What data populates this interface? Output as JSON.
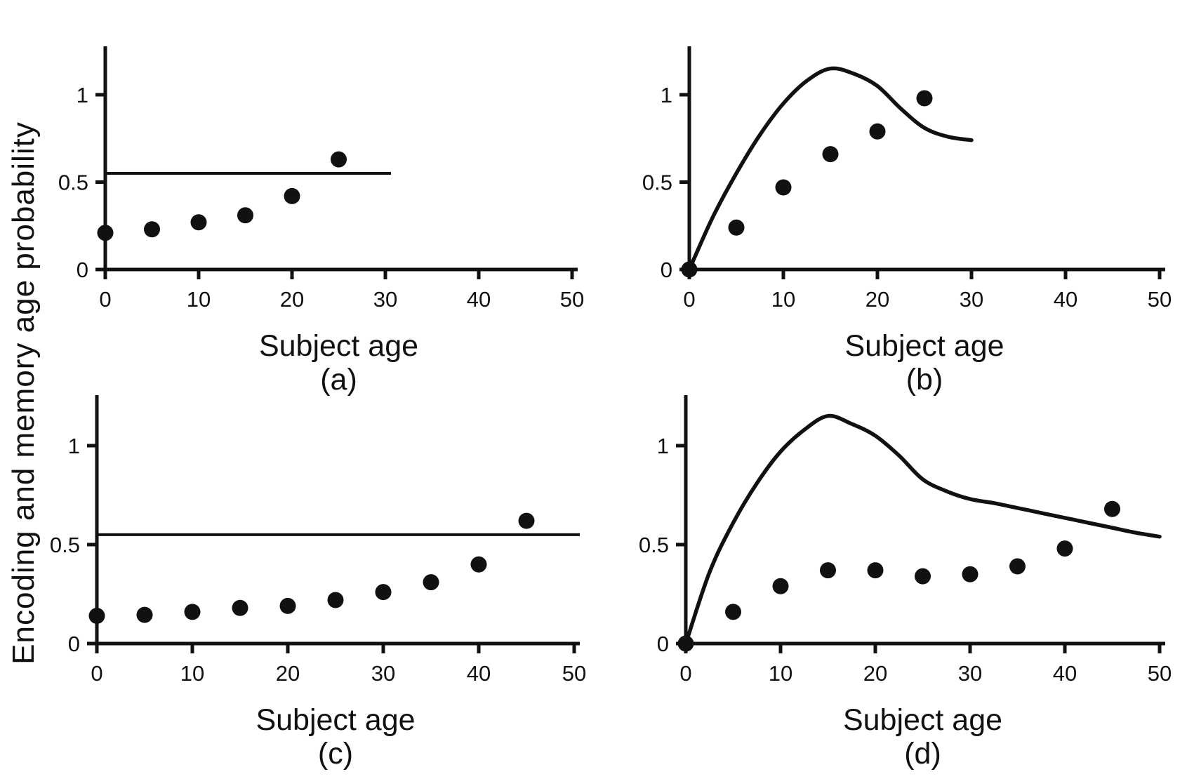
{
  "figure": {
    "y_axis_shared_label": "Encoding and memory age probability",
    "background": "#ffffff",
    "ink": "#111111"
  },
  "chart_data": [
    {
      "panel": "a",
      "type": "scatter",
      "panel_label": "(a)",
      "xlabel": "Subject age",
      "xlim": [
        0,
        50
      ],
      "ylim": [
        0,
        1.28
      ],
      "x_ticks": [
        0,
        10,
        20,
        30,
        40,
        50
      ],
      "y_ticks": [
        0,
        0.5,
        1
      ],
      "grid": false,
      "legend": null,
      "marker": "filled-circle",
      "points": [
        [
          0,
          0.21
        ],
        [
          5,
          0.23
        ],
        [
          10,
          0.27
        ],
        [
          15,
          0.31
        ],
        [
          20,
          0.42
        ],
        [
          25,
          0.63
        ]
      ],
      "hline": {
        "y": 0.55,
        "x_start": 0,
        "x_end": 30
      },
      "curve": null
    },
    {
      "panel": "b",
      "type": "scatter",
      "panel_label": "(b)",
      "xlabel": "Subject age",
      "xlim": [
        0,
        50
      ],
      "ylim": [
        0,
        1.28
      ],
      "x_ticks": [
        0,
        10,
        20,
        30,
        40,
        50
      ],
      "y_ticks": [
        0,
        0.5,
        1
      ],
      "grid": false,
      "legend": null,
      "marker": "filled-circle",
      "points": [
        [
          0,
          0
        ],
        [
          5,
          0.24
        ],
        [
          10,
          0.47
        ],
        [
          15,
          0.66
        ],
        [
          20,
          0.79
        ],
        [
          25,
          0.98
        ]
      ],
      "hline": null,
      "curve": [
        [
          0,
          0
        ],
        [
          2.5,
          0.3
        ],
        [
          5,
          0.55
        ],
        [
          7.5,
          0.77
        ],
        [
          10,
          0.95
        ],
        [
          12.5,
          1.08
        ],
        [
          15,
          1.15
        ],
        [
          17.5,
          1.12
        ],
        [
          20,
          1.05
        ],
        [
          22.5,
          0.92
        ],
        [
          25,
          0.81
        ],
        [
          27.5,
          0.76
        ],
        [
          30,
          0.74
        ]
      ]
    },
    {
      "panel": "c",
      "type": "scatter",
      "panel_label": "(c)",
      "xlabel": "Subject age",
      "xlim": [
        0,
        50
      ],
      "ylim": [
        0,
        1.25
      ],
      "x_ticks": [
        0,
        10,
        20,
        30,
        40,
        50
      ],
      "y_ticks": [
        0,
        0.5,
        1
      ],
      "grid": false,
      "legend": null,
      "marker": "filled-circle",
      "points": [
        [
          0,
          0.14
        ],
        [
          5,
          0.145
        ],
        [
          10,
          0.16
        ],
        [
          15,
          0.18
        ],
        [
          20,
          0.19
        ],
        [
          25,
          0.22
        ],
        [
          30,
          0.26
        ],
        [
          35,
          0.31
        ],
        [
          40,
          0.4
        ],
        [
          45,
          0.62
        ]
      ],
      "hline": {
        "y": 0.55,
        "x_start": 0,
        "x_end": 50
      },
      "curve": null
    },
    {
      "panel": "d",
      "type": "scatter",
      "panel_label": "(d)",
      "xlabel": "Subject age",
      "xlim": [
        0,
        50
      ],
      "ylim": [
        0,
        1.25
      ],
      "x_ticks": [
        0,
        10,
        20,
        30,
        40,
        50
      ],
      "y_ticks": [
        0,
        0.5,
        1
      ],
      "grid": false,
      "legend": null,
      "marker": "filled-circle",
      "points": [
        [
          0,
          0
        ],
        [
          5,
          0.16
        ],
        [
          10,
          0.29
        ],
        [
          15,
          0.37
        ],
        [
          20,
          0.37
        ],
        [
          25,
          0.34
        ],
        [
          30,
          0.35
        ],
        [
          35,
          0.39
        ],
        [
          40,
          0.48
        ],
        [
          45,
          0.68
        ]
      ],
      "hline": null,
      "curve": [
        [
          0,
          0
        ],
        [
          2.5,
          0.36
        ],
        [
          5,
          0.61
        ],
        [
          7.5,
          0.81
        ],
        [
          10,
          0.97
        ],
        [
          12.5,
          1.08
        ],
        [
          15,
          1.15
        ],
        [
          17.5,
          1.11
        ],
        [
          20,
          1.05
        ],
        [
          22.5,
          0.95
        ],
        [
          25,
          0.83
        ],
        [
          27.5,
          0.77
        ],
        [
          30,
          0.73
        ],
        [
          32.5,
          0.71
        ],
        [
          35,
          0.685
        ],
        [
          37.5,
          0.66
        ],
        [
          40,
          0.635
        ],
        [
          42.5,
          0.61
        ],
        [
          45,
          0.585
        ],
        [
          47.5,
          0.56
        ],
        [
          50,
          0.54
        ]
      ]
    }
  ]
}
